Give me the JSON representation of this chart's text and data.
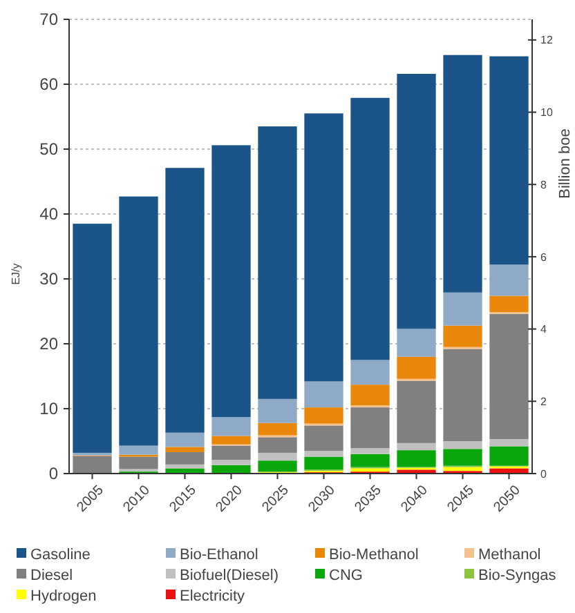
{
  "chart_data": {
    "type": "bar",
    "stacked": true,
    "ylabel": "EJ/y",
    "y2label": "Billion boe",
    "categories": [
      "2005",
      "2010",
      "2015",
      "2020",
      "2025",
      "2030",
      "2035",
      "2040",
      "2045",
      "2050"
    ],
    "series": [
      {
        "name": "Electricity",
        "color": "#ee1010",
        "values": [
          0,
          0,
          0,
          0,
          0,
          0.2,
          0.3,
          0.6,
          0.4,
          0.8
        ]
      },
      {
        "name": "Hydrogen",
        "color": "#ffff00",
        "values": [
          0,
          0,
          0,
          0,
          0.2,
          0.2,
          0.5,
          0.3,
          0.6,
          0.3
        ]
      },
      {
        "name": "Bio-Syngas",
        "color": "#8cc63f",
        "values": [
          0,
          0,
          0,
          null,
          0.1,
          0.2,
          0.2,
          0.1,
          0.2,
          0.1
        ]
      },
      {
        "name": "CNG",
        "color": "#0aa70a",
        "values": [
          0,
          0.3,
          0.8,
          1.3,
          1.7,
          2.0,
          2.0,
          2.6,
          2.6,
          3.0
        ]
      },
      {
        "name": "Biofuel(Diesel)",
        "color": "#c0c0c0",
        "values": [
          0.1,
          0.4,
          0.6,
          0.8,
          1.2,
          0.9,
          0.9,
          1.1,
          1.2,
          1.1
        ]
      },
      {
        "name": "Diesel",
        "color": "#808080",
        "values": [
          2.6,
          1.9,
          1.9,
          2.2,
          2.4,
          3.9,
          6.3,
          9.6,
          14.2,
          19.3
        ]
      },
      {
        "name": "Methanol",
        "color": "#f5c08a",
        "values": [
          0,
          0,
          0,
          0.2,
          0.3,
          0.3,
          0.3,
          0.3,
          0.3,
          0.3
        ]
      },
      {
        "name": "Bio-Methanol",
        "color": "#e8870a",
        "values": [
          0.1,
          0.3,
          0.8,
          1.3,
          1.9,
          2.5,
          3.2,
          3.4,
          3.3,
          2.5
        ]
      },
      {
        "name": "Bio-Ethanol",
        "color": "#8eaac6",
        "values": [
          0.4,
          1.4,
          2.2,
          2.9,
          3.7,
          4.0,
          3.8,
          4.3,
          5.1,
          4.8
        ]
      },
      {
        "name": "Gasoline",
        "color": "#1a5488",
        "values": [
          35.3,
          38.4,
          40.8,
          41.9,
          42.0,
          41.3,
          40.4,
          39.3,
          36.6,
          32.1
        ]
      }
    ],
    "ylim": [
      0,
      70
    ],
    "yticks": [
      0,
      10,
      20,
      30,
      40,
      50,
      60,
      70
    ],
    "y2lim": [
      0,
      12.57
    ],
    "y2ticks": [
      0,
      2,
      4,
      6,
      8,
      10,
      12
    ],
    "grid": "y",
    "legend": "bottom"
  }
}
